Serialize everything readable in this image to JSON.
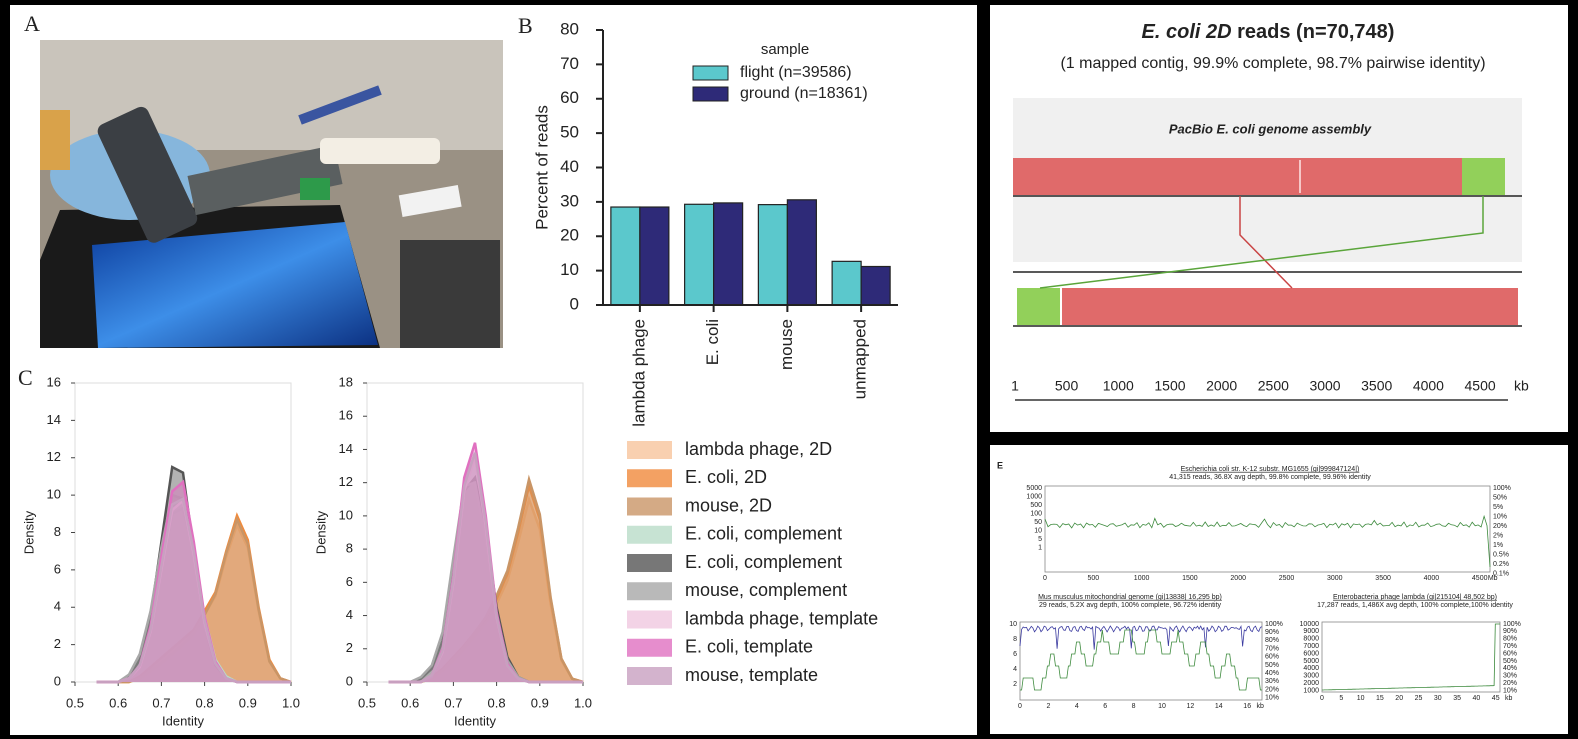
{
  "chart_data": [
    {
      "type": "bar",
      "panel_label": "B",
      "ylabel": "Percent of reads",
      "categories": [
        "lambda phage",
        "E. coli",
        "mouse",
        "unmapped"
      ],
      "legend_title": "sample",
      "series": [
        {
          "name": "flight (n=39586)",
          "color": "#5bc8cc",
          "values": [
            28.5,
            29.3,
            29.2,
            12.7
          ]
        },
        {
          "name": "ground (n=18361)",
          "color": "#2e2a78",
          "values": [
            28.5,
            29.7,
            30.6,
            11.2
          ]
        }
      ],
      "ylim": [
        0,
        80
      ],
      "yticks": [
        0,
        10,
        20,
        30,
        40,
        50,
        60,
        70,
        80
      ]
    },
    {
      "type": "density",
      "panel_label": "C",
      "xlabel": "Identity",
      "ylabel": "Density",
      "x": [
        0.55,
        0.575,
        0.6,
        0.625,
        0.65,
        0.675,
        0.7,
        0.725,
        0.75,
        0.775,
        0.8,
        0.825,
        0.85,
        0.875,
        0.9,
        0.925,
        0.95,
        0.975,
        1.0
      ],
      "xlim": [
        0.5,
        1.0
      ],
      "xticks": [
        0.5,
        0.6,
        0.7,
        0.8,
        0.9,
        {
          "value": 1,
          "label": "1.0"
        }
      ],
      "ylim": [
        0,
        16
      ],
      "yticks": [
        0,
        2,
        4,
        6,
        8,
        10,
        12,
        14,
        16
      ],
      "series": [
        {
          "color": "#f7c49c",
          "values": [
            0,
            0,
            0,
            0,
            0.2,
            0.7,
            1.2,
            1.7,
            2.2,
            2.7,
            3.6,
            4.6,
            6.7,
            8.4,
            7.2,
            3.8,
            1.1,
            0.2,
            0
          ]
        },
        {
          "color": "#f08a3c",
          "values": [
            0,
            0,
            0,
            0,
            0.3,
            0.8,
            1.3,
            1.8,
            2.3,
            2.8,
            3.8,
            4.8,
            7,
            8.9,
            7.6,
            4,
            1.2,
            0.2,
            0
          ]
        },
        {
          "color": "#c99566",
          "values": [
            0,
            0,
            0,
            0,
            0.2,
            0.6,
            1,
            1.5,
            2,
            2.6,
            3.6,
            4.7,
            6.9,
            8.7,
            7.4,
            3.9,
            1.1,
            0.2,
            0
          ]
        },
        {
          "color": "#b9dcc8",
          "values": [
            0,
            0,
            0,
            0.3,
            1.2,
            3,
            6,
            9,
            9.3,
            7,
            3.5,
            1.2,
            0.3,
            0,
            0,
            0,
            0,
            0,
            0
          ]
        },
        {
          "color": "#555555",
          "values": [
            0,
            0,
            0,
            0.3,
            1.2,
            3.5,
            7.5,
            11.5,
            11.2,
            7,
            3,
            0.9,
            0.2,
            0,
            0,
            0,
            0,
            0,
            0
          ]
        },
        {
          "color": "#a8a8a8",
          "values": [
            0,
            0,
            0,
            0.4,
            1.5,
            3.8,
            7.2,
            10,
            9.8,
            6.5,
            3,
            1,
            0.2,
            0,
            0,
            0,
            0,
            0,
            0
          ]
        },
        {
          "color": "#f0c8e0",
          "values": [
            0,
            0,
            0,
            0.2,
            0.8,
            2.7,
            6,
            9.2,
            9.7,
            6.8,
            3.2,
            1,
            0.2,
            0,
            0,
            0,
            0,
            0,
            0
          ]
        },
        {
          "color": "#e070c0",
          "values": [
            0,
            0,
            0,
            0.2,
            0.9,
            3,
            6.7,
            10.2,
            10.7,
            7.5,
            3.5,
            1.1,
            0.2,
            0,
            0,
            0,
            0,
            0,
            0
          ]
        },
        {
          "color": "#c8a0c0",
          "values": [
            0,
            0,
            0,
            0.2,
            0.9,
            2.8,
            6.2,
            9.5,
            9.8,
            7,
            3.3,
            1,
            0.2,
            0,
            0,
            0,
            0,
            0,
            0
          ]
        }
      ]
    },
    {
      "type": "density",
      "xlabel": "Identity",
      "ylabel": "Density",
      "x": [
        0.55,
        0.575,
        0.6,
        0.625,
        0.65,
        0.675,
        0.7,
        0.725,
        0.75,
        0.775,
        0.8,
        0.825,
        0.85,
        0.875,
        0.9,
        0.925,
        0.95,
        0.975,
        1.0
      ],
      "xlim": [
        0.5,
        1.0
      ],
      "xticks": [
        0.5,
        0.6,
        0.7,
        0.8,
        0.9,
        {
          "value": 1,
          "label": "1.0"
        }
      ],
      "ylim": [
        0,
        18
      ],
      "yticks": [
        0,
        2,
        4,
        6,
        8,
        10,
        12,
        14,
        16,
        18
      ],
      "series": [
        {
          "name": "lambda phage, 2D",
          "color": "#f7c49c",
          "values": [
            0,
            0,
            0,
            0,
            0.3,
            0.7,
            1.3,
            2,
            2.8,
            3.6,
            4.7,
            6.1,
            8.4,
            11,
            9.2,
            4.7,
            1.3,
            0.2,
            0
          ]
        },
        {
          "name": "E. coli, 2D",
          "color": "#f08a3c",
          "values": [
            0,
            0,
            0,
            0,
            0.3,
            0.8,
            1.5,
            2.2,
            3,
            3.8,
            5,
            6.5,
            9,
            11.8,
            9.8,
            5,
            1.4,
            0.2,
            0
          ]
        },
        {
          "name": "mouse, 2D",
          "color": "#c99566",
          "values": [
            0,
            0,
            0,
            0,
            0.2,
            0.7,
            1.4,
            2.1,
            3,
            3.9,
            5.2,
            6.7,
            9.3,
            12.2,
            10.1,
            5.1,
            1.4,
            0.2,
            0
          ]
        },
        {
          "name": "E. coli, complement",
          "color": "#b9dcc8",
          "values": [
            0,
            0,
            0,
            0,
            0.3,
            1.8,
            6.5,
            12,
            13.8,
            9.5,
            4,
            1.1,
            0.2,
            0,
            0,
            0,
            0,
            0,
            0
          ]
        },
        {
          "name": "E. coli, complement",
          "color": "#555555",
          "values": [
            0,
            0,
            0,
            0.2,
            0.8,
            2.5,
            7,
            11.5,
            12.3,
            9,
            4.5,
            1.5,
            0.3,
            0,
            0,
            0,
            0,
            0,
            0
          ]
        },
        {
          "name": "mouse, complement",
          "color": "#a8a8a8",
          "values": [
            0,
            0,
            0,
            0.3,
            1,
            3,
            7.5,
            11.8,
            12,
            8.5,
            4,
            1.3,
            0.3,
            0,
            0,
            0,
            0,
            0,
            0
          ]
        },
        {
          "name": "lambda phage, template",
          "color": "#f0c8e0",
          "values": [
            0,
            0,
            0,
            0,
            0.4,
            1.8,
            6,
            11.5,
            13.5,
            9.3,
            3.9,
            1,
            0.2,
            0,
            0,
            0,
            0,
            0,
            0
          ]
        },
        {
          "name": "E. coli, template",
          "color": "#e070c0",
          "values": [
            0,
            0,
            0,
            0,
            0.4,
            2,
            6.4,
            12.3,
            14.4,
            10,
            4.2,
            1.1,
            0.2,
            0,
            0,
            0,
            0,
            0,
            0
          ]
        },
        {
          "name": "mouse, template",
          "color": "#c8a0c0",
          "values": [
            0,
            0,
            0,
            0,
            0.4,
            1.9,
            6.2,
            11.8,
            13.8,
            9.6,
            4,
            1,
            0.2,
            0,
            0,
            0,
            0,
            0,
            0
          ]
        }
      ]
    },
    {
      "type": "alignment",
      "title_italic": "E. coli 2D",
      "title": " reads (n=70,748)",
      "subtitle": "(1 mapped contig, 99.9% complete, 98.7% pairwise identity)",
      "reference_label": "PacBio E. coli genome assembly",
      "xlim": [
        1,
        4770
      ],
      "xticks": [
        1,
        500,
        1000,
        1500,
        2000,
        2500,
        3000,
        3500,
        4000,
        4500
      ],
      "unit": "kb"
    }
  ],
  "panel_a_label": "A",
  "coverage": {
    "label": "E",
    "plots": [
      {
        "title": "Escherichia coli str. K-12 substr. MG1655 (gi|999847124|)",
        "subtitle": "41,315 reads, 36.8X avg depth, 99.8% complete, 99.96% identity",
        "left_labels": [
          "5000",
          "1000",
          "500",
          "100",
          "50",
          "10",
          "5",
          "1"
        ],
        "right_labels": [
          "100%",
          "50%",
          "5%",
          "10%",
          "20%",
          "2%",
          "1%",
          "0.5%",
          "0.2%",
          "0.1%"
        ],
        "x_labels": [
          "0",
          "500",
          "1000",
          "1500",
          "2000",
          "2500",
          "3000",
          "3500",
          "4000",
          "4500",
          "Mb"
        ]
      },
      {
        "title": "Mus musculus mitochondrial genome (gi|13838| 16,295 bp)",
        "subtitle": "29 reads, 5.2X avg depth, 100% complete, 96.72% identity",
        "left_labels": [
          "10",
          "8",
          "6",
          "4",
          "2"
        ],
        "right_labels": [
          "100%",
          "90%",
          "80%",
          "70%",
          "60%",
          "50%",
          "40%",
          "30%",
          "20%",
          "10%"
        ],
        "x_labels": [
          "0",
          "2",
          "4",
          "6",
          "8",
          "10",
          "12",
          "14",
          "16",
          "kb"
        ]
      },
      {
        "title": "Enterobacteria phage lambda (gi|215104| 48,502 bp)",
        "subtitle": "17,287 reads, 1,486X avg depth, 100% complete,100% identity",
        "left_labels": [
          "10000",
          "9000",
          "8000",
          "7000",
          "6000",
          "5000",
          "4000",
          "3000",
          "2000",
          "1000"
        ],
        "right_labels": [
          "100%",
          "90%",
          "80%",
          "70%",
          "60%",
          "50%",
          "40%",
          "30%",
          "20%",
          "10%"
        ],
        "x_labels": [
          "0",
          "5",
          "10",
          "15",
          "20",
          "25",
          "30",
          "35",
          "40",
          "45",
          "kb"
        ]
      }
    ]
  }
}
